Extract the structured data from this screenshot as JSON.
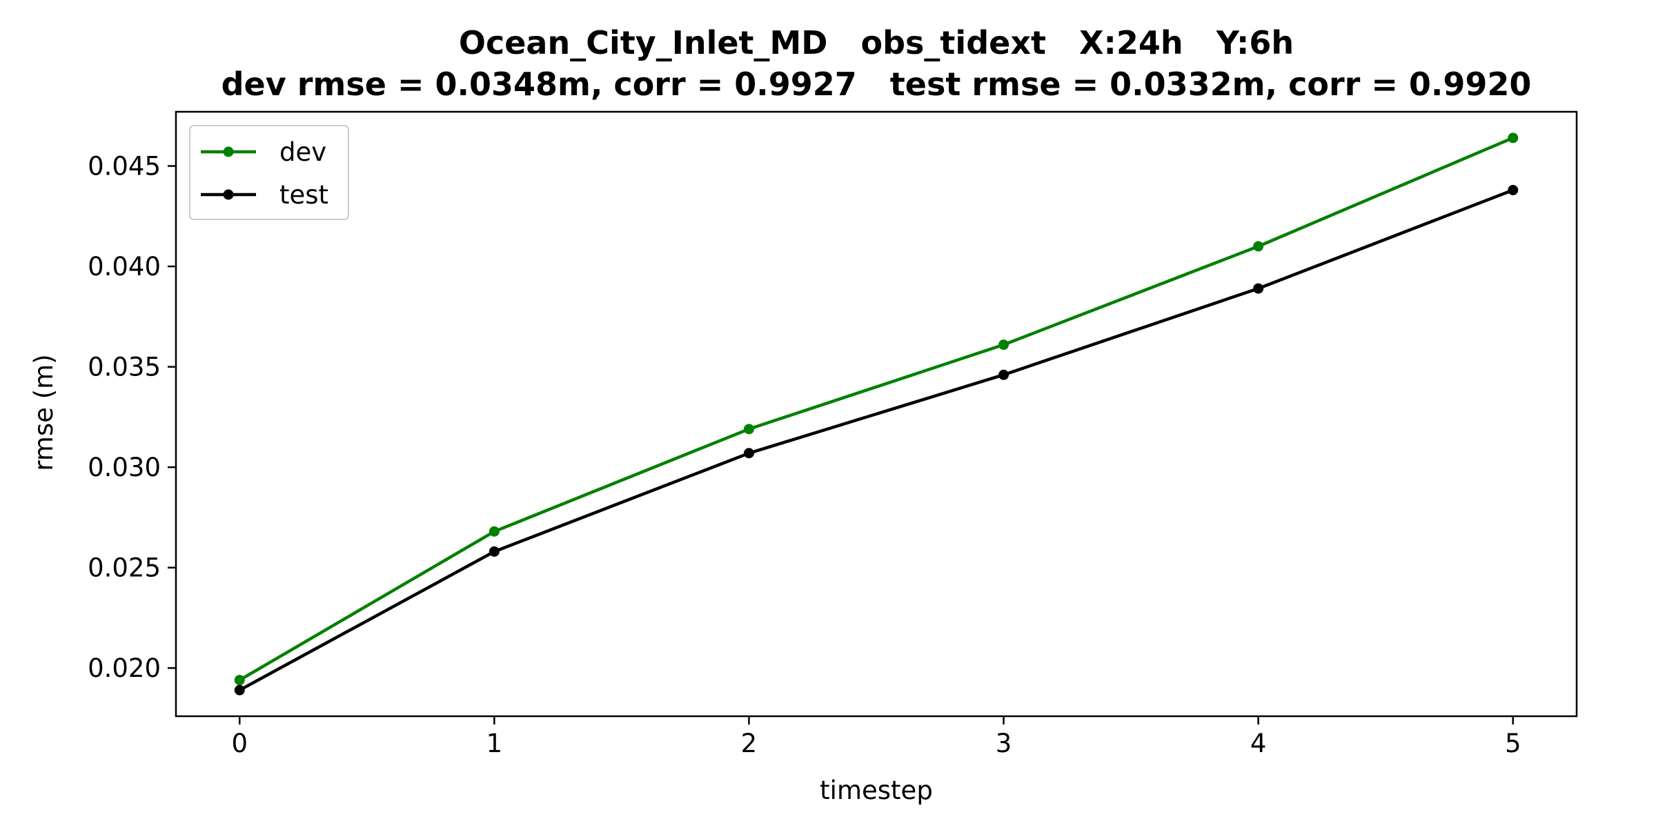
{
  "chart_data": {
    "type": "line",
    "title": "Ocean_City_Inlet_MD   obs_tidext   X:24h   Y:6h",
    "subtitle": "dev rmse = 0.0348m, corr = 0.9927   test rmse = 0.0332m, corr = 0.9920",
    "xlabel": "timestep",
    "ylabel": "rmse (m)",
    "x": [
      0,
      1,
      2,
      3,
      4,
      5
    ],
    "xlim": [
      -0.25,
      5.25
    ],
    "ylim": [
      0.0176,
      0.0477
    ],
    "xticks": [
      0,
      1,
      2,
      3,
      4,
      5
    ],
    "xtick_labels": [
      "0",
      "1",
      "2",
      "3",
      "4",
      "5"
    ],
    "yticks": [
      0.02,
      0.025,
      0.03,
      0.035,
      0.04,
      0.045
    ],
    "ytick_labels": [
      "0.020",
      "0.025",
      "0.030",
      "0.035",
      "0.040",
      "0.045"
    ],
    "grid": false,
    "legend_position": "upper-left",
    "series": [
      {
        "name": "dev",
        "color": "#008000",
        "marker": "circle",
        "values": [
          0.0194,
          0.0268,
          0.0319,
          0.0361,
          0.041,
          0.0464
        ]
      },
      {
        "name": "test",
        "color": "#000000",
        "marker": "circle",
        "values": [
          0.0189,
          0.0258,
          0.0307,
          0.0346,
          0.0389,
          0.0438
        ]
      }
    ]
  }
}
